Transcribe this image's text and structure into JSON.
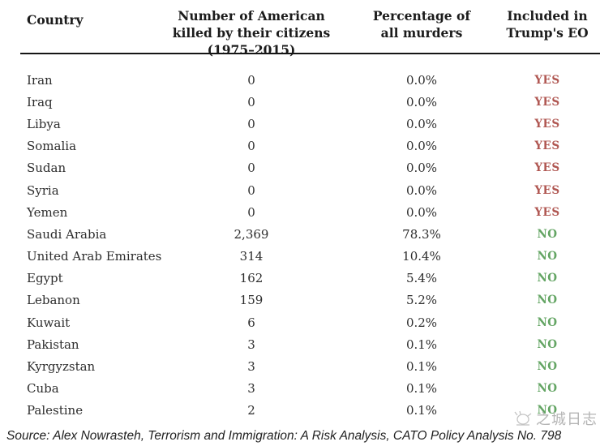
{
  "chart_data": {
    "type": "table",
    "columns": [
      "Country",
      "Number of American killed by their citizens (1975–2015)",
      "Percentage of all murders",
      "Included in Trump's EO"
    ],
    "rows": [
      [
        "Iran",
        "0",
        "0.0%",
        "YES"
      ],
      [
        "Iraq",
        "0",
        "0.0%",
        "YES"
      ],
      [
        "Libya",
        "0",
        "0.0%",
        "YES"
      ],
      [
        "Somalia",
        "0",
        "0.0%",
        "YES"
      ],
      [
        "Sudan",
        "0",
        "0.0%",
        "YES"
      ],
      [
        "Syria",
        "0",
        "0.0%",
        "YES"
      ],
      [
        "Yemen",
        "0",
        "0.0%",
        "YES"
      ],
      [
        "Saudi Arabia",
        "2,369",
        "78.3%",
        "NO"
      ],
      [
        "United Arab Emirates",
        "314",
        "10.4%",
        "NO"
      ],
      [
        "Egypt",
        "162",
        "5.4%",
        "NO"
      ],
      [
        "Lebanon",
        "159",
        "5.2%",
        "NO"
      ],
      [
        "Kuwait",
        "6",
        "0.2%",
        "NO"
      ],
      [
        "Pakistan",
        "3",
        "0.1%",
        "NO"
      ],
      [
        "Kyrgyzstan",
        "3",
        "0.1%",
        "NO"
      ],
      [
        "Cuba",
        "3",
        "0.1%",
        "NO"
      ],
      [
        "Palestine",
        "2",
        "0.1%",
        "NO"
      ]
    ]
  },
  "source": "Source: Alex Nowrasteh, Terrorism and Immigration: A Risk Analysis, CATO Policy Analysis No. 798",
  "watermark": {
    "text": "之城日志"
  },
  "colors": {
    "yes_red": "#b05752",
    "no_green": "#64a564",
    "header_text": "#1b1b1b",
    "body_text": "#2d2d2d",
    "rule_black": "#151515",
    "watermark_gray": "#b5b5b5",
    "background": "#ffffff"
  }
}
